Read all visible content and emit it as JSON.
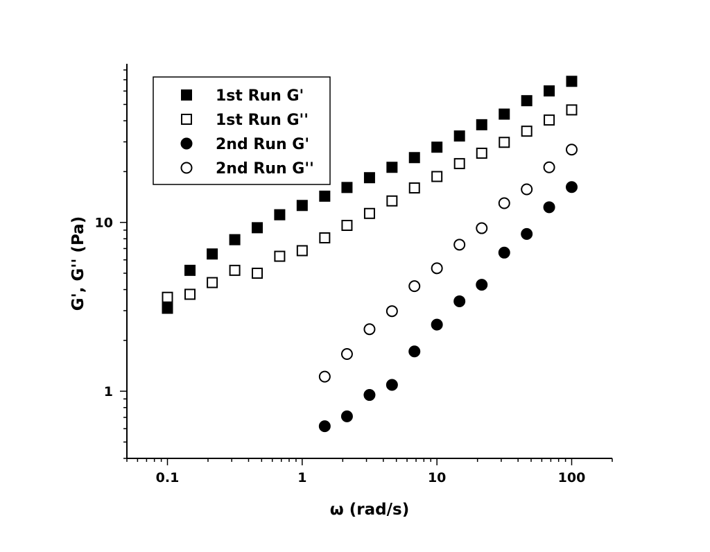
{
  "chart_data": {
    "type": "scatter",
    "xlabel": "ω (rad/s)",
    "ylabel": "G', G'' (Pa)",
    "x_scale": "log",
    "y_scale": "log",
    "xlim": [
      0.05,
      200
    ],
    "ylim": [
      0.4,
      87
    ],
    "x_ticks": [
      {
        "value": 0.1,
        "label": "0.1"
      },
      {
        "value": 1,
        "label": "1"
      },
      {
        "value": 10,
        "label": "10"
      },
      {
        "value": 100,
        "label": "100"
      }
    ],
    "y_ticks": [
      {
        "value": 1,
        "label": "1"
      },
      {
        "value": 10,
        "label": "10"
      }
    ],
    "grid": false,
    "legend_position": "top-left",
    "series": [
      {
        "name": "1st Run G'",
        "marker": "filled-square",
        "color": "#000000",
        "x": [
          0.1,
          0.147,
          0.215,
          0.316,
          0.464,
          0.681,
          1,
          1.47,
          2.15,
          3.16,
          4.64,
          6.81,
          10,
          14.7,
          21.5,
          31.6,
          46.4,
          68.1,
          100
        ],
        "y": [
          3.1,
          5.2,
          6.5,
          7.9,
          9.3,
          11.1,
          12.6,
          14.3,
          16.1,
          18.4,
          21.2,
          24.2,
          27.9,
          32.5,
          37.9,
          43.8,
          52.6,
          60.1,
          68.5
        ]
      },
      {
        "name": "1st Run G''",
        "marker": "open-square",
        "color": "#000000",
        "x": [
          0.1,
          0.147,
          0.215,
          0.316,
          0.464,
          0.681,
          1,
          1.47,
          2.15,
          3.16,
          4.64,
          6.81,
          10,
          14.7,
          21.5,
          31.6,
          46.4,
          68.1,
          100
        ],
        "y": [
          3.6,
          3.75,
          4.4,
          5.2,
          5.0,
          6.3,
          6.8,
          8.1,
          9.6,
          11.3,
          13.4,
          16.0,
          18.7,
          22.3,
          25.7,
          29.8,
          34.7,
          40.4,
          46.4
        ]
      },
      {
        "name": "2nd Run G'",
        "marker": "filled-circle",
        "color": "#000000",
        "x": [
          1.47,
          2.15,
          3.16,
          4.64,
          6.81,
          10,
          14.7,
          21.5,
          31.6,
          46.4,
          68.1,
          100
        ],
        "y": [
          0.62,
          0.71,
          0.95,
          1.09,
          1.72,
          2.48,
          3.41,
          4.27,
          6.62,
          8.54,
          12.3,
          16.2
        ]
      },
      {
        "name": "2nd Run G''",
        "marker": "open-circle",
        "color": "#000000",
        "x": [
          1.47,
          2.15,
          3.16,
          4.64,
          6.81,
          10,
          14.7,
          21.5,
          31.6,
          46.4,
          68.1,
          100
        ],
        "y": [
          1.22,
          1.66,
          2.33,
          2.98,
          4.19,
          5.35,
          7.38,
          9.24,
          13.0,
          15.7,
          21.2,
          27.0
        ]
      }
    ]
  }
}
